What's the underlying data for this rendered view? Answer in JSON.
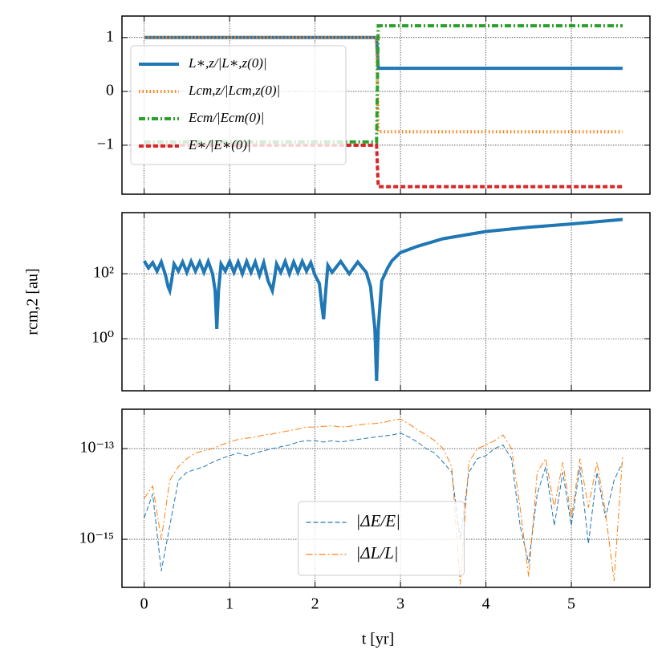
{
  "chart_data": [
    {
      "type": "line",
      "xlim": [
        -0.26,
        5.92
      ],
      "xticks": [
        0,
        1,
        2,
        3,
        4,
        5
      ],
      "ylim": [
        -1.91,
        1.4
      ],
      "yticks": [
        1,
        0,
        {
          "value": -1,
          "label": "−1"
        }
      ],
      "grid": true,
      "legend": "upper left",
      "linewidth": 4,
      "x": [
        0,
        2.72,
        2.74,
        5.6
      ],
      "series": [
        {
          "name": "L∗,z/|L∗,z(0)|",
          "color": "#1f77b4",
          "linestyle": "solid",
          "values": [
            1,
            1,
            0.43,
            0.43
          ]
        },
        {
          "name": "Lcm,z/|Lcm,z(0)|",
          "color": "#ff7f0e",
          "linestyle": "dotted",
          "values": [
            1,
            1,
            -0.75,
            -0.75
          ]
        },
        {
          "name": "Ecm/|Ecm(0)|",
          "color": "#2ca02c",
          "linestyle": "dashdot",
          "values": [
            -0.94,
            -0.94,
            1.22,
            1.22
          ]
        },
        {
          "name": "E∗/|E∗(0)|",
          "color": "#d62728",
          "linestyle": "dashed",
          "values": [
            -1,
            -1,
            -1.77,
            -1.77
          ]
        }
      ]
    },
    {
      "type": "line",
      "log": true,
      "xlim": [
        -0.26,
        5.92
      ],
      "xticks": [
        0,
        1,
        2,
        3,
        4,
        5
      ],
      "ylim": [
        0.025,
        7600
      ],
      "yticks": [
        {
          "value": 100,
          "label": "10²"
        },
        {
          "value": 1,
          "label": "10⁰"
        }
      ],
      "grid": true,
      "ylabel": "rcm,2 [au]",
      "linewidth": 4,
      "x": [
        0,
        0.05,
        0.1,
        0.15,
        0.2,
        0.25,
        0.28,
        0.3,
        0.32,
        0.35,
        0.4,
        0.45,
        0.5,
        0.55,
        0.6,
        0.65,
        0.7,
        0.75,
        0.8,
        0.83,
        0.85,
        0.87,
        0.9,
        0.95,
        1.0,
        1.05,
        1.1,
        1.15,
        1.2,
        1.25,
        1.3,
        1.35,
        1.4,
        1.45,
        1.48,
        1.5,
        1.52,
        1.55,
        1.6,
        1.65,
        1.7,
        1.75,
        1.8,
        1.85,
        1.9,
        1.95,
        2.0,
        2.05,
        2.08,
        2.1,
        2.12,
        2.15,
        2.2,
        2.3,
        2.4,
        2.5,
        2.6,
        2.65,
        2.7,
        2.72,
        2.74,
        2.78,
        2.85,
        2.9,
        3.0,
        3.2,
        3.5,
        4.0,
        4.5,
        5.0,
        5.6
      ],
      "series": [
        {
          "color": "#1f77b4",
          "linestyle": "solid",
          "values": [
            250,
            150,
            220,
            120,
            230,
            90,
            40,
            30,
            60,
            200,
            120,
            230,
            110,
            240,
            120,
            230,
            110,
            240,
            100,
            30,
            2,
            30,
            200,
            120,
            240,
            110,
            230,
            100,
            240,
            110,
            230,
            90,
            220,
            60,
            40,
            30,
            60,
            200,
            110,
            240,
            100,
            230,
            110,
            240,
            120,
            220,
            90,
            50,
            10,
            4,
            20,
            180,
            110,
            240,
            100,
            230,
            110,
            40,
            2,
            0.05,
            2,
            60,
            150,
            250,
            450,
            700,
            1200,
            2000,
            2700,
            3400,
            4700
          ]
        }
      ]
    },
    {
      "type": "line",
      "log": true,
      "xlim": [
        -0.26,
        5.92
      ],
      "xticks": [
        0,
        1,
        2,
        3,
        4,
        5
      ],
      "ylim": [
        8.7e-17,
        7.4e-13
      ],
      "yticks": [
        {
          "value": 1e-13,
          "label": "10⁻¹³"
        },
        {
          "value": 1e-15,
          "label": "10⁻¹⁵"
        }
      ],
      "grid": true,
      "legend": "lower center",
      "linewidth": 1,
      "xlabel": "t [yr]",
      "x": [
        0,
        0.1,
        0.2,
        0.3,
        0.4,
        0.5,
        0.6,
        0.7,
        0.8,
        0.9,
        1.0,
        1.1,
        1.2,
        1.3,
        1.4,
        1.5,
        1.6,
        1.7,
        1.8,
        1.9,
        2.0,
        2.1,
        2.2,
        2.3,
        2.4,
        2.5,
        2.6,
        2.7,
        2.8,
        2.9,
        3.0,
        3.1,
        3.2,
        3.3,
        3.4,
        3.5,
        3.6,
        3.7,
        3.8,
        3.9,
        4.0,
        4.1,
        4.2,
        4.3,
        4.4,
        4.5,
        4.6,
        4.7,
        4.8,
        4.9,
        5.0,
        5.1,
        5.2,
        5.3,
        5.4,
        5.5,
        5.6
      ],
      "series": [
        {
          "name": "|ΔE/E|",
          "color": "#1f77b4",
          "linestyle": "dashed",
          "values": [
            3e-15,
            1e-14,
            2e-16,
            2e-15,
            2e-14,
            3e-14,
            3.5e-14,
            4e-14,
            5e-14,
            6e-14,
            7e-14,
            8e-14,
            7e-14,
            8e-14,
            9e-14,
            1e-13,
            1.1e-13,
            1.2e-13,
            1.4e-13,
            1.5e-13,
            1.5e-13,
            1.4e-13,
            1.5e-13,
            1.4e-13,
            1.5e-13,
            1.6e-13,
            1.7e-13,
            1.8e-13,
            1.9e-13,
            2e-13,
            2.2e-13,
            1.8e-13,
            1.4e-13,
            1e-13,
            8e-14,
            5e-14,
            3e-14,
            1e-15,
            3e-14,
            6e-14,
            7e-14,
            1e-13,
            1.2e-13,
            6e-14,
            2e-15,
            3e-16,
            1e-14,
            4e-14,
            2e-15,
            3e-14,
            2e-15,
            4e-14,
            8e-16,
            3e-14,
            3e-15,
            2e-14,
            5e-14
          ]
        },
        {
          "name": "|ΔL/L|",
          "color": "#ff7f0e",
          "linestyle": "dashdot",
          "values": [
            8e-15,
            1.5e-14,
            1e-15,
            2e-14,
            4e-14,
            6e-14,
            8e-14,
            9e-14,
            1e-13,
            1.2e-13,
            1.4e-13,
            1.6e-13,
            1.7e-13,
            1.8e-13,
            2e-13,
            2.1e-13,
            2.3e-13,
            2.5e-13,
            2.7e-13,
            3e-13,
            3e-13,
            3.1e-13,
            3.2e-13,
            3e-13,
            3.1e-13,
            3.3e-13,
            3.5e-13,
            3.6e-13,
            3.8e-13,
            4.2e-13,
            4.5e-13,
            3.5e-13,
            2.6e-13,
            2e-13,
            1.5e-13,
            1e-13,
            4e-14,
            1e-16,
            5e-14,
            1e-13,
            1.2e-13,
            1.5e-13,
            2e-13,
            1e-13,
            5e-15,
            1.5e-16,
            3e-14,
            6e-14,
            5e-15,
            5e-14,
            3e-15,
            6e-14,
            5e-15,
            5e-14,
            4e-15,
            1.2e-16,
            7e-14
          ]
        }
      ]
    }
  ]
}
